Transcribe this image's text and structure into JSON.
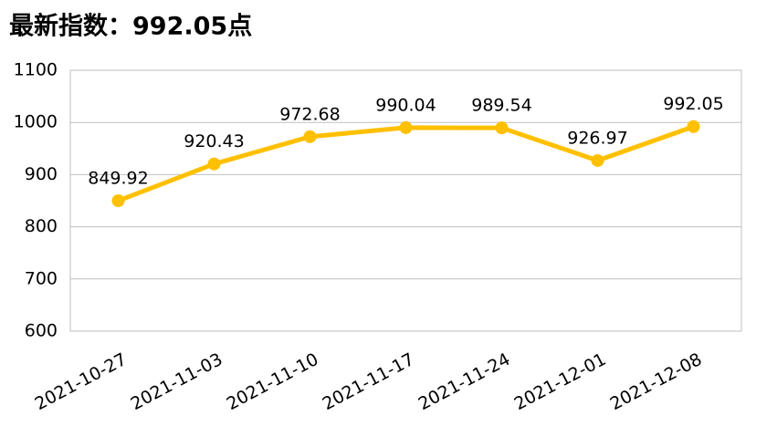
{
  "chart_data": {
    "type": "line",
    "title": "最新指数：992.05点",
    "categories": [
      "2021-10-27",
      "2021-11-03",
      "2021-11-10",
      "2021-11-17",
      "2021-11-24",
      "2021-12-01",
      "2021-12-08"
    ],
    "values": [
      849.92,
      920.43,
      972.68,
      990.04,
      989.54,
      926.97,
      992.05
    ],
    "color": "#FFC000",
    "ylim": [
      600,
      1100
    ],
    "yticks": [
      600,
      700,
      800,
      900,
      1000,
      1100
    ],
    "grid": true
  }
}
